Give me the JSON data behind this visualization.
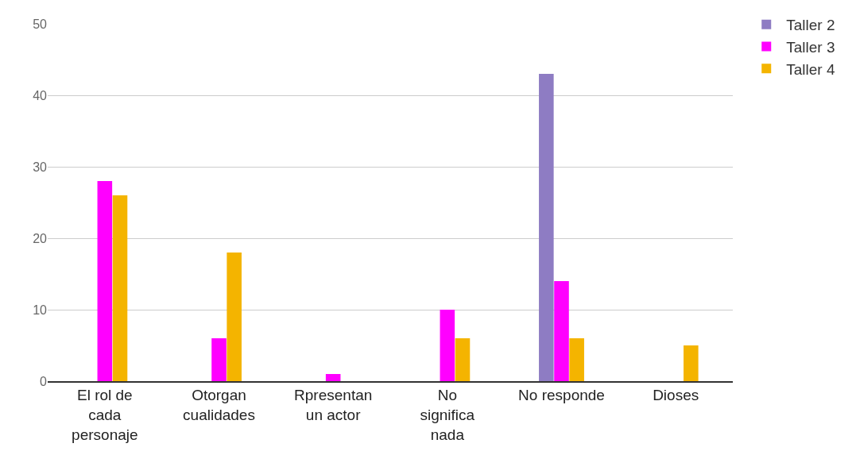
{
  "chart_data": {
    "type": "bar",
    "categories": [
      "El rol de cada personaje",
      "Otorgan cualidades",
      "Rpresentan un actor",
      "No significa nada",
      "No responde",
      "Dioses"
    ],
    "series": [
      {
        "name": "Taller 2",
        "color": "#8e7cc3",
        "values": [
          null,
          null,
          null,
          null,
          43,
          null
        ]
      },
      {
        "name": "Taller 3",
        "color": "#ff00ff",
        "values": [
          28,
          6,
          1,
          10,
          14,
          null
        ]
      },
      {
        "name": "Taller 4",
        "color": "#f4b400",
        "values": [
          26,
          18,
          null,
          6,
          6,
          5
        ]
      }
    ],
    "ylim": [
      0,
      50
    ],
    "yticks": [
      0,
      10,
      20,
      30,
      40,
      50
    ],
    "grid": "y",
    "legend": "top right"
  }
}
